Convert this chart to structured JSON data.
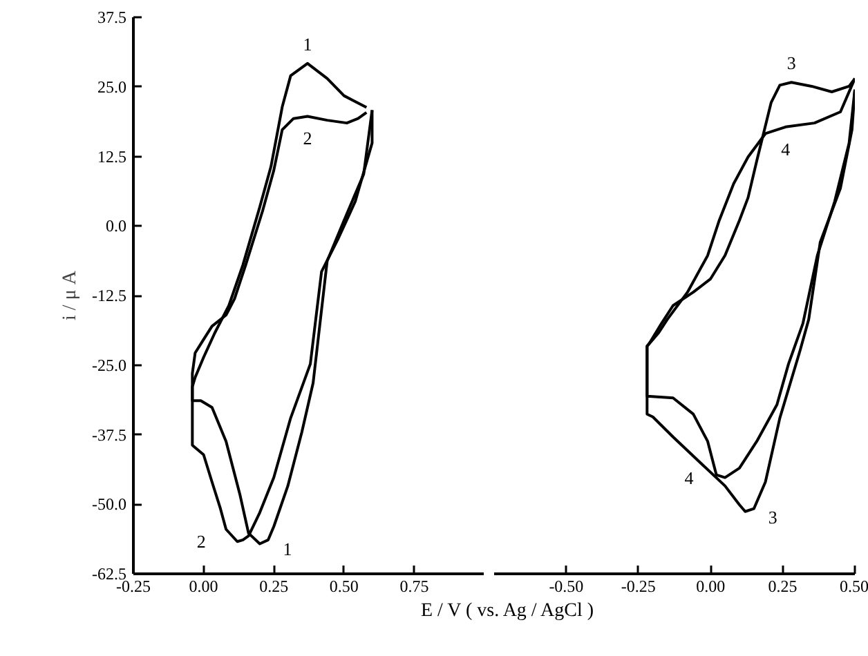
{
  "chart_data": [
    {
      "type": "line",
      "ylabel": "i / μ A",
      "xlabel": "E / V ( vs. Ag / AgCl )",
      "xlim": [
        -0.25,
        1.0
      ],
      "ylim": [
        -62.5,
        37.5
      ],
      "xticks": [
        {
          "value": -0.25,
          "label": "-0.25"
        },
        {
          "value": 0,
          "label": "0.00"
        },
        {
          "value": 0.25,
          "label": "0.25"
        },
        {
          "value": 0.5,
          "label": "0.50"
        },
        {
          "value": 0.75,
          "label": "0.75"
        }
      ],
      "yticks": [
        {
          "value": -62.5,
          "label": "-62.5"
        },
        {
          "value": -50,
          "label": "-50.0"
        },
        {
          "value": -37.5,
          "label": "-37.5"
        },
        {
          "value": -25,
          "label": "-25.0"
        },
        {
          "value": -12.5,
          "label": "-12.5"
        },
        {
          "value": 0,
          "label": "0.0"
        },
        {
          "value": 12.5,
          "label": "12.5"
        },
        {
          "value": 25,
          "label": "25.0"
        },
        {
          "value": 37.5,
          "label": "37.5"
        }
      ],
      "series": [
        {
          "color": "#000000",
          "x": [
            0.6,
            0.57,
            0.5,
            0.44,
            0.39,
            0.35,
            0.3,
            0.25,
            0.23,
            0.2,
            0.16,
            0.13,
            0.08,
            0.03,
            -0.01,
            -0.04,
            -0.04,
            -0.03,
            0.0,
            0.04,
            0.09,
            0.14,
            0.2,
            0.24,
            0.28,
            0.31,
            0.37,
            0.44,
            0.5,
            0.58
          ],
          "values": [
            20.8,
            9.3,
            1.0,
            -6.3,
            -28.2,
            -37.0,
            -46.7,
            -54.0,
            -56.4,
            -57.1,
            -55.2,
            -48.4,
            -38.7,
            -32.6,
            -31.4,
            -31.4,
            -28.9,
            -27.2,
            -23.6,
            -19.2,
            -14.3,
            -7.0,
            3.4,
            10.7,
            21.4,
            27.0,
            29.2,
            26.5,
            23.4,
            21.3
          ]
        },
        {
          "color": "#000000",
          "x": [
            0.6,
            0.6,
            0.54,
            0.48,
            0.42,
            0.38,
            0.31,
            0.25,
            0.2,
            0.16,
            0.14,
            0.12,
            0.08,
            0.06,
            0.03,
            0.0,
            -0.04,
            -0.04,
            -0.04,
            -0.03,
            0.0,
            0.03,
            0.08,
            0.11,
            0.15,
            0.21,
            0.25,
            0.28,
            0.32,
            0.37,
            0.44,
            0.51,
            0.55,
            0.58
          ],
          "values": [
            20.8,
            14.9,
            4.4,
            -2.2,
            -8.2,
            -24.8,
            -34.5,
            -45.2,
            -51.5,
            -55.7,
            -56.4,
            -56.7,
            -54.5,
            -50.8,
            -46.0,
            -41.1,
            -39.4,
            -31.4,
            -26.5,
            -22.8,
            -20.4,
            -18.0,
            -16.0,
            -13.1,
            -7.0,
            2.7,
            10.0,
            17.3,
            19.3,
            19.7,
            19.0,
            18.5,
            19.3,
            20.4
          ]
        }
      ],
      "annotations": [
        {
          "text": "1",
          "x": 0.37,
          "y": 29.2
        },
        {
          "text": "2",
          "x": 0.37,
          "y": 19.7
        },
        {
          "text": "2",
          "x": 0.12,
          "y": -56.7
        },
        {
          "text": "1",
          "x": 0.2,
          "y": -57.1
        }
      ]
    },
    {
      "type": "line",
      "tick_labels": "x",
      "xlim": [
        -0.75,
        0.5
      ],
      "ylim": [
        -62.5,
        37.5
      ],
      "xticks": [
        {
          "value": -0.5,
          "label": "-0.50"
        },
        {
          "value": -0.25,
          "label": "-0.25"
        },
        {
          "value": 0,
          "label": "0.00"
        },
        {
          "value": 0.25,
          "label": "0.25"
        },
        {
          "value": 0.5,
          "label": "0.50"
        }
      ],
      "series": [
        {
          "color": "#000000",
          "x": [
            0.5,
            0.48,
            0.42,
            0.35,
            0.28,
            0.24,
            0.21,
            0.19,
            0.16,
            0.13,
            0.1,
            0.05,
            0.0,
            -0.06,
            -0.13,
            -0.17,
            -0.21,
            -0.22,
            -0.22,
            -0.2,
            -0.13,
            -0.03,
            0.05,
            0.1,
            0.12,
            0.15,
            0.19,
            0.24,
            0.31,
            0.34,
            0.38,
            0.45,
            0.49,
            0.5
          ],
          "values": [
            26.5,
            25.1,
            24.1,
            25.1,
            25.8,
            25.3,
            22.2,
            18.0,
            11.7,
            5.1,
            1.0,
            -5.3,
            -9.5,
            -11.9,
            -14.3,
            -17.5,
            -20.9,
            -21.6,
            -33.8,
            -34.3,
            -37.9,
            -42.8,
            -46.7,
            -50.1,
            -51.3,
            -50.8,
            -46.0,
            -34.5,
            -22.4,
            -16.8,
            -2.9,
            6.8,
            17.3,
            24.5
          ]
        },
        {
          "color": "#000000",
          "x": [
            0.5,
            0.45,
            0.36,
            0.26,
            0.19,
            0.13,
            0.08,
            0.03,
            -0.01,
            -0.08,
            -0.15,
            -0.18,
            -0.22,
            -0.22,
            -0.21,
            -0.13,
            -0.06,
            -0.01,
            0.02,
            0.05,
            0.1,
            0.16,
            0.23,
            0.27,
            0.32,
            0.37,
            0.43,
            0.48,
            0.5
          ],
          "values": [
            26.5,
            20.5,
            18.5,
            17.8,
            16.6,
            12.4,
            7.6,
            1.0,
            -5.3,
            -11.9,
            -16.8,
            -19.2,
            -21.6,
            -30.6,
            -30.6,
            -30.9,
            -33.8,
            -38.7,
            -44.7,
            -45.2,
            -43.5,
            -38.7,
            -32.1,
            -24.8,
            -17.5,
            -5.3,
            4.4,
            14.9,
            24.5
          ]
        }
      ],
      "annotations": [
        {
          "text": "3",
          "x": 0.28,
          "y": 25.8
        },
        {
          "text": "4",
          "x": 0.26,
          "y": 17.8
        },
        {
          "text": "4",
          "x": 0.05,
          "y": -45.2
        },
        {
          "text": "3",
          "x": 0.12,
          "y": -51.3
        }
      ]
    }
  ]
}
